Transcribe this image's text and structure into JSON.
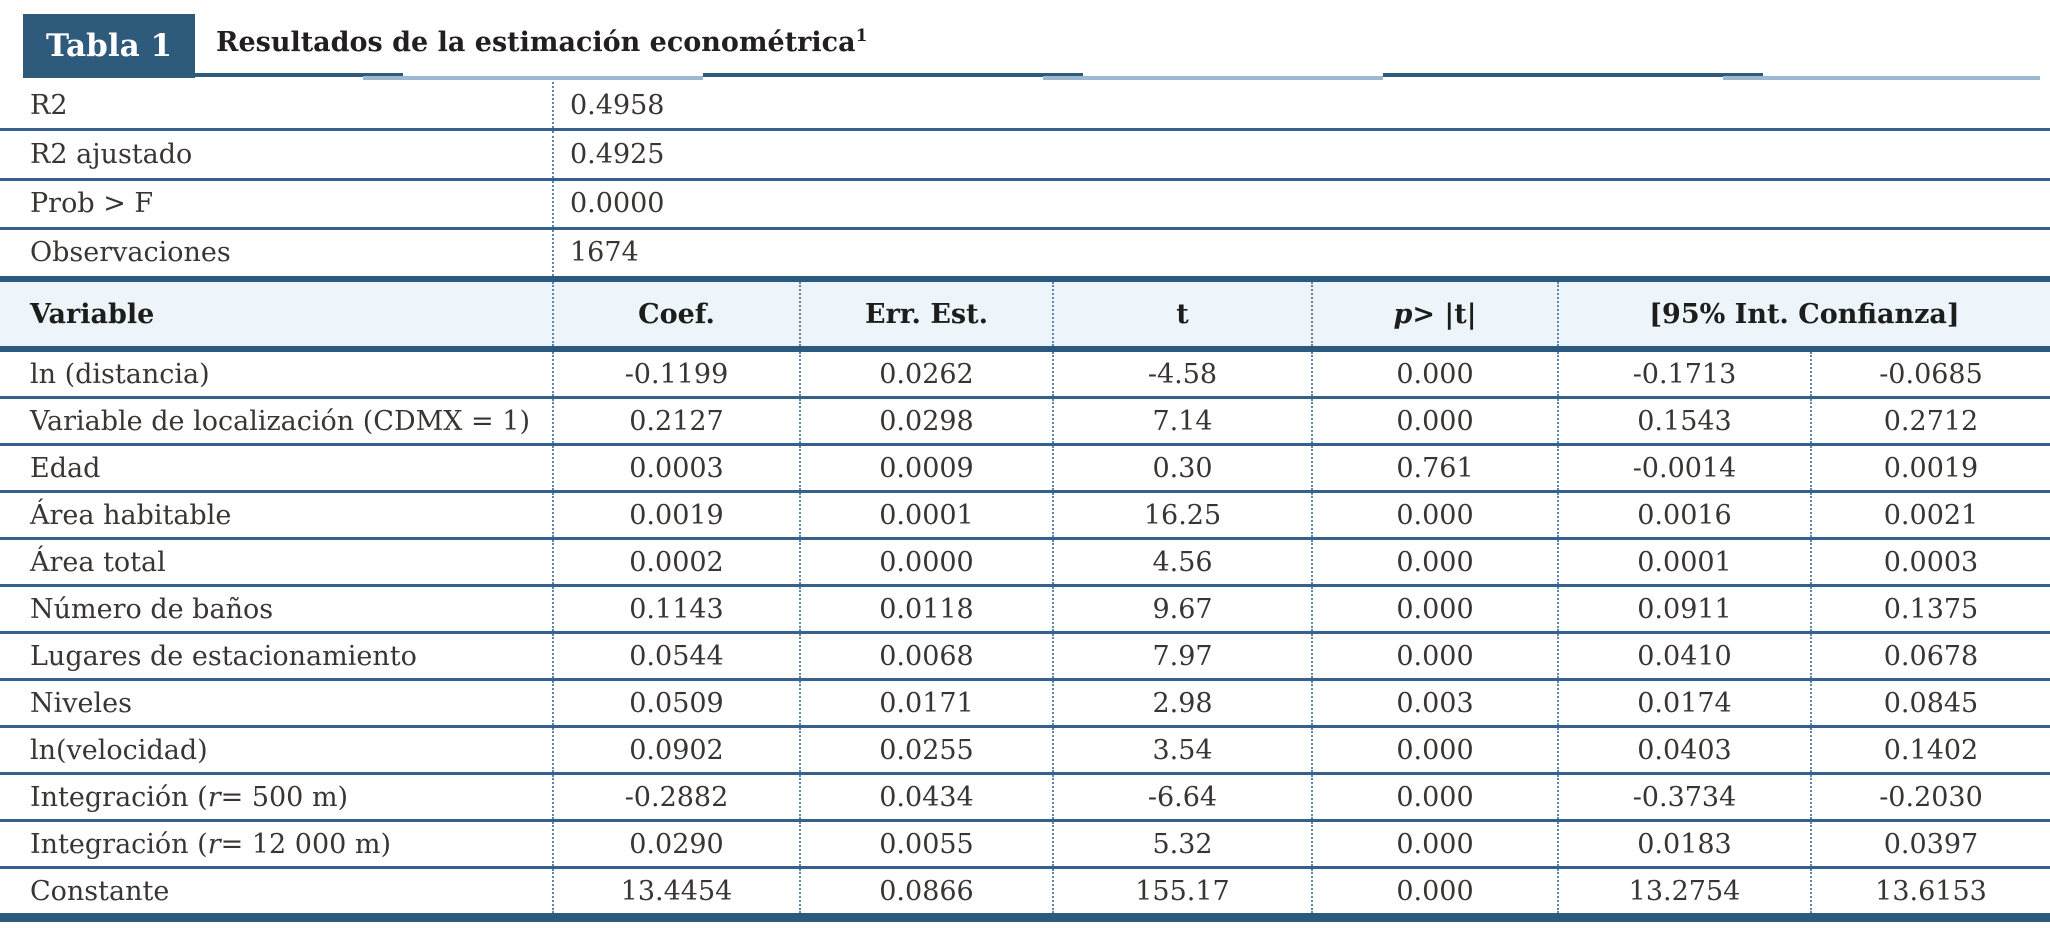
{
  "header": {
    "tag": "Tabla 1",
    "title": "Resultados de la estimación econométrica",
    "title_superscript": "1"
  },
  "colors": {
    "accent_dark": "#2e5a7c",
    "rule_thick": "#2b5a7e",
    "rule_thin": "#35618c",
    "rule_light_segment": "#9db9d2",
    "dotted_divider": "#5e87b0",
    "header_row_bg": "#edf4fa",
    "text": "#3a3533",
    "title_text": "#231f20"
  },
  "summary": {
    "rows": [
      {
        "label": "R2",
        "value": "0.4958"
      },
      {
        "label": "R2 ajustado",
        "value": "0.4925"
      },
      {
        "label": "Prob > F",
        "value": "0.0000"
      },
      {
        "label": "Observaciones",
        "value": "1674"
      }
    ]
  },
  "results": {
    "columns": {
      "variable": "Variable",
      "coef": "Coef.",
      "err": "Err. Est.",
      "t": "t",
      "p_italic": "p",
      "p_rest": " > |t|",
      "ci": "[95% Int. Confianza]"
    },
    "rows": [
      {
        "label_parts": [
          "ln (distancia)"
        ],
        "coef": "-0.1199",
        "err": "0.0262",
        "t": "-4.58",
        "p": "0.000",
        "ci_low": "-0.1713",
        "ci_high": "-0.0685"
      },
      {
        "label_parts": [
          "Variable de localización (CDMX = 1)"
        ],
        "coef": "0.2127",
        "err": "0.0298",
        "t": "7.14",
        "p": "0.000",
        "ci_low": "0.1543",
        "ci_high": "0.2712"
      },
      {
        "label_parts": [
          "Edad"
        ],
        "coef": "0.0003",
        "err": "0.0009",
        "t": "0.30",
        "p": "0.761",
        "ci_low": "-0.0014",
        "ci_high": "0.0019"
      },
      {
        "label_parts": [
          "Área habitable"
        ],
        "coef": "0.0019",
        "err": "0.0001",
        "t": "16.25",
        "p": "0.000",
        "ci_low": "0.0016",
        "ci_high": "0.0021"
      },
      {
        "label_parts": [
          "Área total"
        ],
        "coef": "0.0002",
        "err": "0.0000",
        "t": "4.56",
        "p": "0.000",
        "ci_low": "0.0001",
        "ci_high": "0.0003"
      },
      {
        "label_parts": [
          "Número de baños"
        ],
        "coef": "0.1143",
        "err": "0.0118",
        "t": "9.67",
        "p": "0.000",
        "ci_low": "0.0911",
        "ci_high": "0.1375"
      },
      {
        "label_parts": [
          "Lugares de estacionamiento"
        ],
        "coef": "0.0544",
        "err": "0.0068",
        "t": "7.97",
        "p": "0.000",
        "ci_low": "0.0410",
        "ci_high": "0.0678"
      },
      {
        "label_parts": [
          "Niveles"
        ],
        "coef": "0.0509",
        "err": "0.0171",
        "t": "2.98",
        "p": "0.003",
        "ci_low": "0.0174",
        "ci_high": "0.0845"
      },
      {
        "label_parts": [
          "ln(velocidad)"
        ],
        "coef": "0.0902",
        "err": "0.0255",
        "t": "3.54",
        "p": "0.000",
        "ci_low": "0.0403",
        "ci_high": "0.1402"
      },
      {
        "label_parts": [
          "Integración (",
          "r",
          " = 500 m)"
        ],
        "coef": "-0.2882",
        "err": "0.0434",
        "t": "-6.64",
        "p": "0.000",
        "ci_low": "-0.3734",
        "ci_high": "-0.2030"
      },
      {
        "label_parts": [
          "Integración (",
          "r",
          " = 12 000 m)"
        ],
        "coef": "0.0290",
        "err": "0.0055",
        "t": "5.32",
        "p": "0.000",
        "ci_low": "0.0183",
        "ci_high": "0.0397"
      },
      {
        "label_parts": [
          "Constante"
        ],
        "coef": "13.4454",
        "err": "0.0866",
        "t": "155.17",
        "p": "0.000",
        "ci_low": "13.2754",
        "ci_high": "13.6153"
      }
    ]
  }
}
